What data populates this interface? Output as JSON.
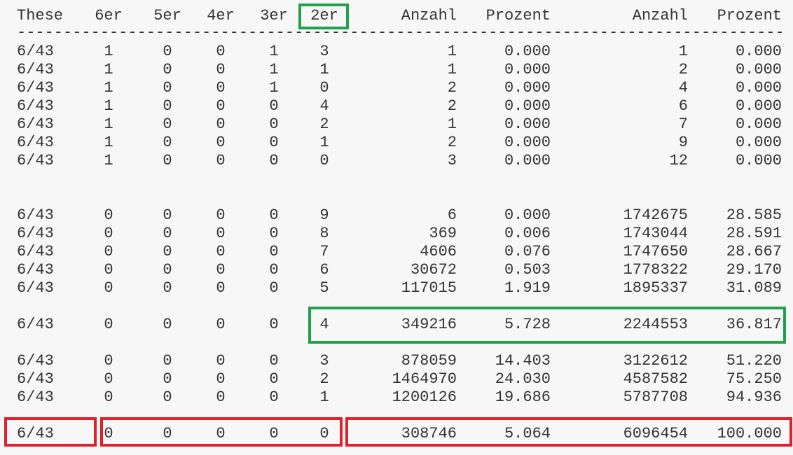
{
  "columns": [
    "These",
    "6er",
    "5er",
    "4er",
    "3er",
    "2er",
    "Anzahl",
    "Prozent",
    "Anzahl",
    "Prozent"
  ],
  "separator": "------------------------------------------------------------------------------------------------------------------------",
  "group1": [
    [
      "6/43",
      "1",
      "0",
      "0",
      "1",
      "3",
      "1",
      "0.000",
      "1",
      "0.000"
    ],
    [
      "6/43",
      "1",
      "0",
      "0",
      "1",
      "1",
      "1",
      "0.000",
      "2",
      "0.000"
    ],
    [
      "6/43",
      "1",
      "0",
      "0",
      "1",
      "0",
      "2",
      "0.000",
      "4",
      "0.000"
    ],
    [
      "6/43",
      "1",
      "0",
      "0",
      "0",
      "4",
      "2",
      "0.000",
      "6",
      "0.000"
    ],
    [
      "6/43",
      "1",
      "0",
      "0",
      "0",
      "2",
      "1",
      "0.000",
      "7",
      "0.000"
    ],
    [
      "6/43",
      "1",
      "0",
      "0",
      "0",
      "1",
      "2",
      "0.000",
      "9",
      "0.000"
    ],
    [
      "6/43",
      "1",
      "0",
      "0",
      "0",
      "0",
      "3",
      "0.000",
      "12",
      "0.000"
    ]
  ],
  "group2": [
    [
      "6/43",
      "0",
      "0",
      "0",
      "0",
      "9",
      "6",
      "0.000",
      "1742675",
      "28.585"
    ],
    [
      "6/43",
      "0",
      "0",
      "0",
      "0",
      "8",
      "369",
      "0.006",
      "1743044",
      "28.591"
    ],
    [
      "6/43",
      "0",
      "0",
      "0",
      "0",
      "7",
      "4606",
      "0.076",
      "1747650",
      "28.667"
    ],
    [
      "6/43",
      "0",
      "0",
      "0",
      "0",
      "6",
      "30672",
      "0.503",
      "1778322",
      "29.170"
    ],
    [
      "6/43",
      "0",
      "0",
      "0",
      "0",
      "5",
      "117015",
      "1.919",
      "1895337",
      "31.089"
    ]
  ],
  "highlight_row": [
    "6/43",
    "0",
    "0",
    "0",
    "0",
    "4",
    "349216",
    "5.728",
    "2244553",
    "36.817"
  ],
  "group3": [
    [
      "6/43",
      "0",
      "0",
      "0",
      "0",
      "3",
      "878059",
      "14.403",
      "3122612",
      "51.220"
    ],
    [
      "6/43",
      "0",
      "0",
      "0",
      "0",
      "2",
      "1464970",
      "24.030",
      "4587582",
      "75.250"
    ],
    [
      "6/43",
      "0",
      "0",
      "0",
      "0",
      "1",
      "1200126",
      "19.686",
      "5787708",
      "94.936"
    ]
  ],
  "last_row": [
    "6/43",
    "0",
    "0",
    "0",
    "0",
    "0",
    "308746",
    "5.064",
    "6096454",
    "100.000"
  ],
  "colors": {
    "green_box": "#22a04a",
    "red_box": "#e0202a",
    "text": "#333333",
    "background": "#f7f7f7"
  }
}
